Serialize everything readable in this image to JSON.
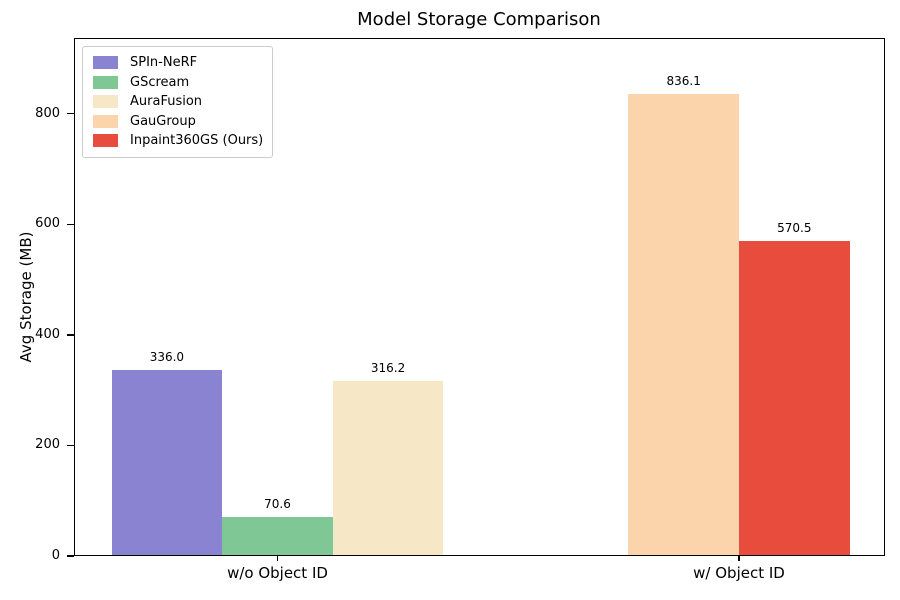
{
  "chart_data": {
    "type": "bar",
    "title": "Model Storage Comparison",
    "ylabel": "Avg Storage (MB)",
    "xlabel": "",
    "categories": [
      "w/o Object ID",
      "w/ Object ID"
    ],
    "series": [
      {
        "name": "SPIn-NeRF",
        "color": "#8983d1",
        "values": [
          336.0,
          null
        ]
      },
      {
        "name": "GScream",
        "color": "#7fc896",
        "values": [
          70.6,
          null
        ]
      },
      {
        "name": "AuraFusion",
        "color": "#f6e8c6",
        "values": [
          316.2,
          null
        ]
      },
      {
        "name": "GauGroup",
        "color": "#fbd4ac",
        "values": [
          null,
          836.1
        ]
      },
      {
        "name": "Inpaint360GS (Ours)",
        "color": "#e74c3c",
        "values": [
          null,
          570.5
        ]
      }
    ],
    "bar_value_labels": [
      "336.0",
      "70.6",
      "316.2",
      "836.1",
      "570.5"
    ],
    "yticks": [
      0,
      200,
      400,
      600,
      800
    ],
    "ylim": [
      0,
      937
    ],
    "value_label_decimals": 1,
    "legend_position": "upper left",
    "grid": false,
    "colors": {
      "axis": "#000000",
      "background": "#ffffff",
      "legend_border": "#cccccc"
    }
  }
}
